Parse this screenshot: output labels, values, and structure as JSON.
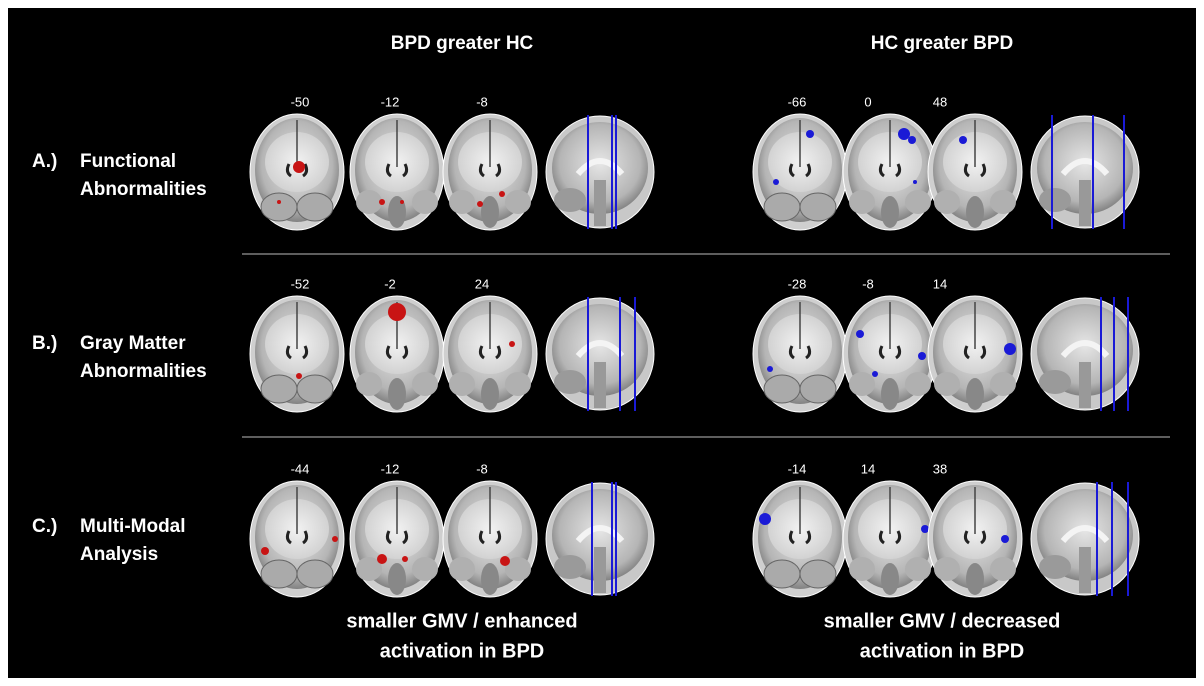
{
  "columns": [
    {
      "title": "BPD greater HC"
    },
    {
      "title": "HC greater BPD"
    }
  ],
  "rows": [
    {
      "prefix": "A.)",
      "label_lines": [
        "Functional",
        "Abnormalities"
      ],
      "slices": [
        [
          -50,
          -12,
          -8
        ],
        [
          -66,
          0,
          48
        ]
      ]
    },
    {
      "prefix": "B.)",
      "label_lines": [
        "Gray Matter",
        "Abnormalities"
      ],
      "slices": [
        [
          -52,
          -2,
          24
        ],
        [
          -28,
          -8,
          14
        ]
      ]
    },
    {
      "prefix": "C.)",
      "label_lines": [
        "Multi-Modal",
        "Analysis"
      ],
      "slices": [
        [
          -44,
          -12,
          -8
        ],
        [
          -14,
          14,
          38
        ]
      ]
    }
  ],
  "footer": [
    [
      "smaller GMV / enhanced",
      "activation in BPD"
    ],
    [
      "smaller GMV / decreased",
      "activation in BPD"
    ]
  ]
}
